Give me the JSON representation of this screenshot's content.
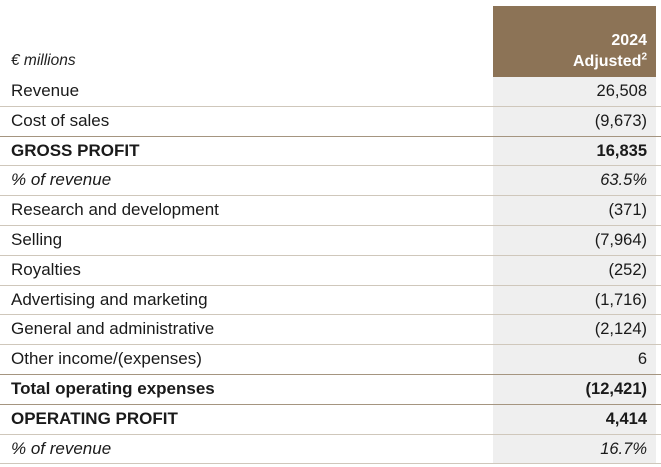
{
  "header": {
    "unit_label": "€ millions",
    "year": "2024",
    "column_label": "Adjusted",
    "footnote": "2"
  },
  "rows": [
    {
      "label": "Revenue",
      "value": "26,508"
    },
    {
      "label": "Cost of sales",
      "value": "(9,673)"
    },
    {
      "label": "GROSS PROFIT",
      "value": "16,835"
    },
    {
      "label": "% of revenue",
      "value": "63.5%"
    },
    {
      "label": "Research and development",
      "value": "(371)"
    },
    {
      "label": "Selling",
      "value": "(7,964)"
    },
    {
      "label": "Royalties",
      "value": "(252)"
    },
    {
      "label": "Advertising and marketing",
      "value": "(1,716)"
    },
    {
      "label": "General and administrative",
      "value": "(2,124)"
    },
    {
      "label": "Other income/(expenses)",
      "value": "6"
    },
    {
      "label": "Total operating expenses",
      "value": "(12,421)"
    },
    {
      "label": "OPERATING PROFIT",
      "value": "4,414"
    },
    {
      "label": "% of revenue",
      "value": "16.7%"
    }
  ]
}
